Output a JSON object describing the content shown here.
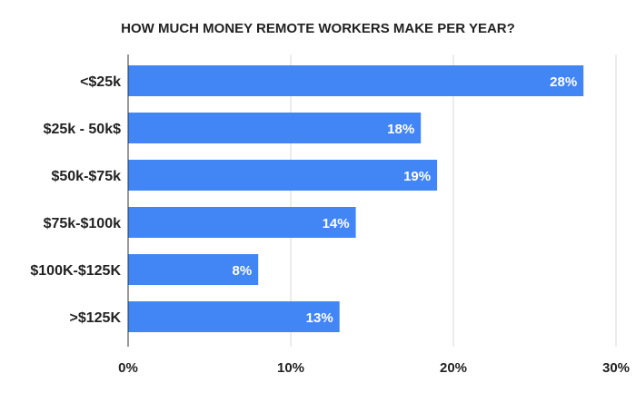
{
  "chart_data": {
    "type": "bar",
    "orientation": "horizontal",
    "title": "HOW MUCH MONEY REMOTE WORKERS MAKE PER YEAR?",
    "categories": [
      "<$25k",
      "$25k - 50k$",
      "$50k-$75k",
      "$75k-$100k",
      "$100K-$125K",
      ">$125K"
    ],
    "values": [
      28,
      18,
      19,
      14,
      8,
      13
    ],
    "value_labels": [
      "28%",
      "18%",
      "19%",
      "14%",
      "8%",
      "13%"
    ],
    "xlim": [
      0,
      30
    ],
    "xticks": [
      0,
      10,
      20,
      30
    ],
    "xtick_labels": [
      "0%",
      "10%",
      "20%",
      "30%"
    ],
    "xlabel": "",
    "ylabel": "",
    "grid": "vertical",
    "legend": "none",
    "bar_color": "#4285f4"
  }
}
